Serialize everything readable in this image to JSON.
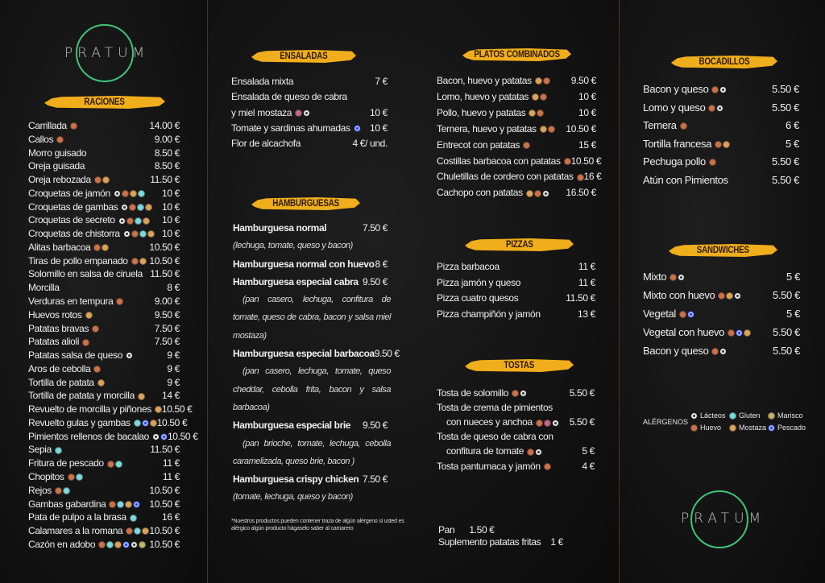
{
  "brand": "PRATUM",
  "allergen_colors": {
    "L": "#e9e9e9",
    "G": "#7dd8dc",
    "Ma": "#c4b46a",
    "H": "#c9724c",
    "Mo": "#d9a35c",
    "P": "#2a3fd4",
    "R": "#c0688e"
  },
  "allergen_icons": {
    "L": "milk-icon",
    "G": "wheat-icon",
    "Ma": "shellfish-icon",
    "H": "egg-icon",
    "Mo": "mustard-icon",
    "P": "fish-icon",
    "R": "allergen-icon"
  },
  "raciones": {
    "title": "RACIONES",
    "items": [
      {
        "name": "Carrillada",
        "allergens": [
          "H"
        ],
        "price": "14.00 €"
      },
      {
        "name": "Callos",
        "allergens": [
          "H"
        ],
        "price": "9.00 €"
      },
      {
        "name": "Morro guisado",
        "allergens": [],
        "price": "8.50 €"
      },
      {
        "name": "Oreja guisada",
        "allergens": [],
        "price": "8.50 €"
      },
      {
        "name": "Oreja rebozada",
        "allergens": [
          "H",
          "Mo"
        ],
        "price": "11.50 €"
      },
      {
        "name": "Croquetas de jamón",
        "allergens": [
          "L",
          "H",
          "Mo",
          "G"
        ],
        "price": "10 €"
      },
      {
        "name": "Croquetas de gambas",
        "allergens": [
          "L",
          "H",
          "G",
          "Mo"
        ],
        "price": "10 €"
      },
      {
        "name": "Croquetas de secreto",
        "allergens": [
          "L",
          "H",
          "G",
          "Mo"
        ],
        "price": "10 €"
      },
      {
        "name": "Croquetas de chistorra",
        "allergens": [
          "L",
          "H",
          "G",
          "Mo"
        ],
        "price": "10 €"
      },
      {
        "name": "Alitas barbacoa",
        "allergens": [
          "H",
          "Mo"
        ],
        "price": "10.50 €"
      },
      {
        "name": "Tiras de pollo empanado",
        "allergens": [
          "H",
          "Mo"
        ],
        "price": "10.50 €"
      },
      {
        "name": "Solomillo en salsa de ciruela",
        "allergens": [],
        "price": "11.50 €"
      },
      {
        "name": "Morcilla",
        "allergens": [],
        "price": "8 €"
      },
      {
        "name": "Verduras en tempura",
        "allergens": [
          "H"
        ],
        "price": "9.00 €"
      },
      {
        "name": "Huevos rotos",
        "allergens": [
          "Mo"
        ],
        "price": "9.50 €"
      },
      {
        "name": "Patatas bravas",
        "allergens": [
          "H"
        ],
        "price": "7.50 €"
      },
      {
        "name": "Patatas alioli",
        "allergens": [
          "H"
        ],
        "price": "7.50 €"
      },
      {
        "name": "Patatas salsa de queso",
        "allergens": [
          "L"
        ],
        "price": "9 €"
      },
      {
        "name": "Aros de cebolla",
        "allergens": [
          "H"
        ],
        "price": "9 €"
      },
      {
        "name": "Tortilla de patata",
        "allergens": [
          "Mo"
        ],
        "price": "9 €"
      },
      {
        "name": "Tortilla de patata y morcilla",
        "allergens": [
          "Mo"
        ],
        "price": "14 €"
      },
      {
        "name": "Revuelto de morcilla y piñones",
        "allergens": [
          "Mo"
        ],
        "price": "10.50 €"
      },
      {
        "name": "Revuelto gulas y gambas",
        "allergens": [
          "G",
          "P",
          "Mo"
        ],
        "price": "10.50 €"
      },
      {
        "name": "Pimientos rellenos de bacalao",
        "allergens": [
          "L",
          "P"
        ],
        "price": "10.50 €"
      },
      {
        "name": "Sepia",
        "allergens": [
          "G"
        ],
        "price": "11.50 €"
      },
      {
        "name": "Fritura de pescado",
        "allergens": [
          "H",
          "G"
        ],
        "price": "11 €"
      },
      {
        "name": "Chopitos",
        "allergens": [
          "H",
          "G"
        ],
        "price": "11 €"
      },
      {
        "name": "Rejos",
        "allergens": [
          "H",
          "G"
        ],
        "price": "10.50 €"
      },
      {
        "name": "Gambas gabardina",
        "allergens": [
          "H",
          "G",
          "Mo",
          "P"
        ],
        "price": "10.50 €"
      },
      {
        "name": "Pata de pulpo a la brasa",
        "allergens": [
          "G"
        ],
        "price": "16 €"
      },
      {
        "name": "Calamares a la romana",
        "allergens": [
          "H",
          "G",
          "Mo"
        ],
        "price": "10.50 €"
      },
      {
        "name": "Cazón en adobo",
        "allergens": [
          "H",
          "G",
          "Mo",
          "P",
          "L",
          "Ma"
        ],
        "price": "10.50 €"
      }
    ]
  },
  "ensaladas": {
    "title": "ENSALADAS",
    "items": [
      {
        "name": "Ensalada mixta",
        "allergens": [],
        "price": "7 €"
      },
      {
        "name": "Ensalada de queso de cabra",
        "allergens": [],
        "price": ""
      },
      {
        "name": "y miel mostaza",
        "allergens": [
          "R",
          "L"
        ],
        "price": "10 €"
      },
      {
        "name": "Tomate y sardinas ahumadas",
        "allergens": [
          "P"
        ],
        "price": "10 €"
      },
      {
        "name": "Flor de alcachofa",
        "allergens": [],
        "price": "4 €/ und."
      }
    ]
  },
  "hamburguesas": {
    "title": "HAMBURGUESAS",
    "items": [
      {
        "name": "Hamburguesa  normal",
        "price": "7.50 €",
        "desc": "(lechuga, tomate, queso  y bacon)",
        "desc_lines": 1
      },
      {
        "name": "Hamburguesa  normal con huevo",
        "price": "8 €",
        "desc": "",
        "desc_lines": 0
      },
      {
        "name": "Hamburguesa especial cabra",
        "price": "9.50 €",
        "desc": "(pan casero, lechuga, confitura de tomate, queso de cabra, bacon y salsa miel mostaza)",
        "desc_lines": 3
      },
      {
        "name": "Hamburguesa especial barbacoa",
        "price": "9.50 €",
        "desc": "(pan casero, lechuga, tomate, queso cheddar, cebolla frita, bacon y salsa barbacoa)",
        "desc_lines": 3
      },
      {
        "name": "Hamburguesa especial brie",
        "price": "9.50 €",
        "desc": "(pan brioche, tomate, lechuga, cebolla caramelizada, queso brie, bacon )",
        "desc_lines": 2
      },
      {
        "name": "Hamburguesa crispy chicken",
        "price": "7.50 €",
        "desc": "(tomate, lechuga, queso y bacon)",
        "desc_lines": 1
      }
    ],
    "footnote": "*Nuestros productos pueden contener traza de algún alérgeno si usted es alérgico algún producto hágaselo saber al camarero"
  },
  "platos_combinados": {
    "title": "PLATOS COMBINADOS",
    "items": [
      {
        "name": "Bacon, huevo y patatas",
        "allergens": [
          "Mo",
          "H"
        ],
        "price": "9.50 €"
      },
      {
        "name": "Lomo, huevo y patatas",
        "allergens": [
          "Mo",
          "H"
        ],
        "price": "10 €"
      },
      {
        "name": "Pollo, huevo y patatas",
        "allergens": [
          "Mo",
          "H"
        ],
        "price": "10 €"
      },
      {
        "name": "Ternera, huevo y patatas",
        "allergens": [
          "Mo",
          "H"
        ],
        "price": "10.50 €"
      },
      {
        "name": "Entrecot con patatas",
        "allergens": [
          "H"
        ],
        "price": "15 €"
      },
      {
        "name": "Costillas barbacoa con patatas",
        "allergens": [
          "H"
        ],
        "price": "10.50 €"
      },
      {
        "name": "Chuletillas de cordero con patatas",
        "allergens": [
          "H"
        ],
        "price": "16 €"
      },
      {
        "name": "Cachopo con patatas",
        "allergens": [
          "Mo",
          "H",
          "L"
        ],
        "price": "16.50 €"
      }
    ]
  },
  "pizzas": {
    "title": "PIZZAS",
    "items": [
      {
        "name": "Pizza barbacoa",
        "allergens": [],
        "price": "11 €"
      },
      {
        "name": "Pizza jamón y queso",
        "allergens": [],
        "price": "11 €"
      },
      {
        "name": "Pizza cuatro quesos",
        "allergens": [],
        "price": "11.50 €"
      },
      {
        "name": "Pizza champiñón y jamón",
        "allergens": [],
        "price": "13 €"
      }
    ]
  },
  "tostas": {
    "title": "TOSTAS",
    "items": [
      {
        "name": "Tosta de solomillo",
        "allergens": [
          "H",
          "L"
        ],
        "price": "5.50 €"
      },
      {
        "name": "Tosta de crema de pimientos",
        "allergens": [],
        "price": ""
      },
      {
        "name": "con nueces y anchoa",
        "indent": true,
        "allergens": [
          "H",
          "R",
          "L"
        ],
        "price": "5.50 €"
      },
      {
        "name": "Tosta de queso de cabra con",
        "allergens": [],
        "price": ""
      },
      {
        "name": "confitura de tomate",
        "indent": true,
        "allergens": [
          "H",
          "L"
        ],
        "price": "5 €"
      },
      {
        "name": "Tosta pantumaca  y jamón",
        "allergens": [
          "H"
        ],
        "price": "4 €"
      }
    ]
  },
  "extras": {
    "pan_label": "Pan",
    "pan_price": "1.50 €",
    "suplemento_label": "Suplemento patatas fritas",
    "suplemento_price": "1 €"
  },
  "bocadillos": {
    "title": "BOCADILLOS",
    "items": [
      {
        "name": "Bacon y queso",
        "allergens": [
          "H",
          "L"
        ],
        "price": "5.50 €"
      },
      {
        "name": "Lomo y queso",
        "allergens": [
          "H",
          "L"
        ],
        "price": "5.50 €"
      },
      {
        "name": "Ternera",
        "allergens": [
          "H"
        ],
        "price": "6 €"
      },
      {
        "name": "Tortilla francesa",
        "allergens": [
          "H",
          "Mo"
        ],
        "price": "5 €"
      },
      {
        "name": "Pechuga pollo",
        "allergens": [
          "H"
        ],
        "price": "5.50 €"
      },
      {
        "name": "Atún con Pimientos",
        "allergens": [],
        "price": "5.50 €"
      }
    ]
  },
  "sandwiches": {
    "title": "SANDWICHES",
    "items": [
      {
        "name": "Mixto",
        "allergens": [
          "H",
          "L"
        ],
        "price": "5 €"
      },
      {
        "name": "Mixto con huevo",
        "allergens": [
          "H",
          "Mo",
          "L"
        ],
        "price": "5.50 €"
      },
      {
        "name": "Vegetal",
        "allergens": [
          "H",
          "P"
        ],
        "price": "5 €"
      },
      {
        "name": "Vegetal con huevo",
        "allergens": [
          "H",
          "P",
          "Mo"
        ],
        "price": "5.50 €"
      },
      {
        "name": "Bacon y queso",
        "allergens": [
          "H",
          "L"
        ],
        "price": "5.50 €"
      }
    ]
  },
  "legend": {
    "title": "ALÉRGENOS",
    "items": [
      {
        "code": "L",
        "label": "Lácteos"
      },
      {
        "code": "G",
        "label": "Gluten"
      },
      {
        "code": "Ma",
        "label": "Marisco"
      },
      {
        "code": "H",
        "label": "Huevo"
      },
      {
        "code": "Mo",
        "label": "Mostaza"
      },
      {
        "code": "P",
        "label": "Pescado"
      }
    ]
  }
}
